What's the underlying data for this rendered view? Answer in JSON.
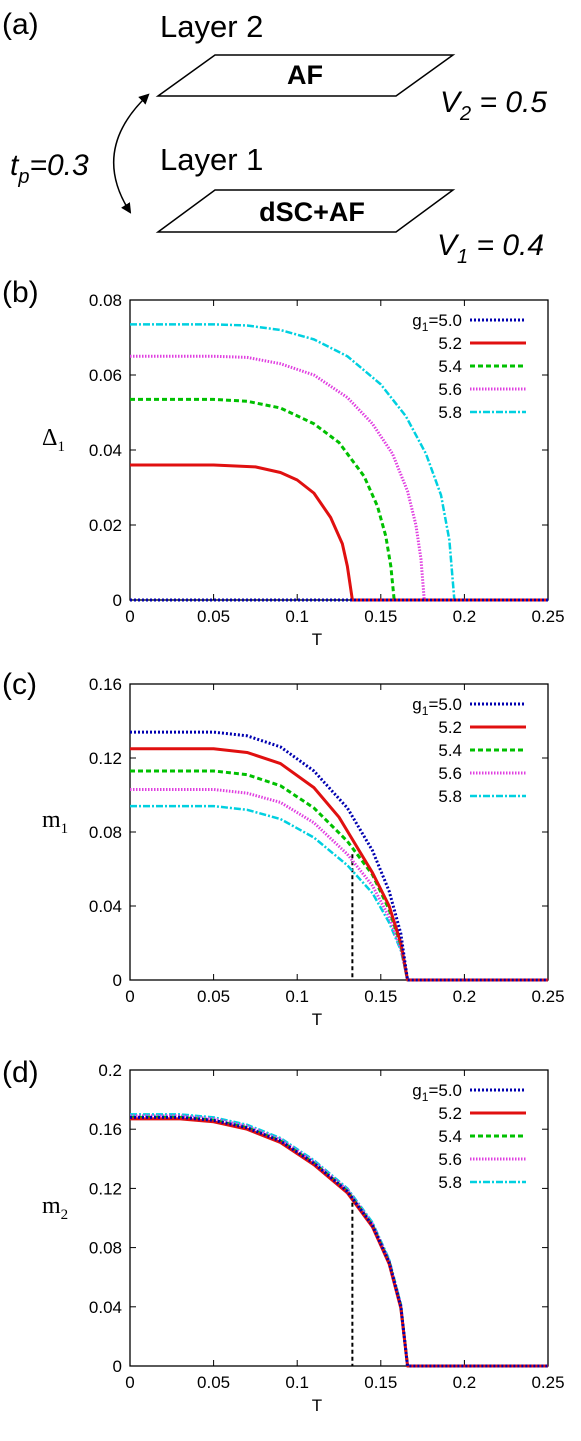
{
  "schematic": {
    "panel_label": "(a)",
    "layer2": {
      "name": "Layer 2",
      "phase": "AF",
      "param_main": "V",
      "param_sub": "2",
      "param_value": " = 0.5"
    },
    "layer1": {
      "name": "Layer 1",
      "phase": "dSC+AF",
      "param_main": "V",
      "param_sub": "1",
      "param_value": " = 0.4"
    },
    "coupling": {
      "main": "t",
      "sub": "p",
      "value": "=0.3"
    }
  },
  "colors": {
    "series": [
      "#0000b0",
      "#e01010",
      "#00c000",
      "#e040e0",
      "#00d0e0"
    ],
    "axis": "#000000"
  },
  "chart_data": [
    {
      "type": "line",
      "panel_label": "(b)",
      "title": "",
      "xlabel": "T",
      "ylabel_main": "Δ",
      "ylabel_sub": "1",
      "xlim": [
        0,
        0.25
      ],
      "ylim": [
        0,
        0.08
      ],
      "xticks": [
        0,
        0.05,
        0.1,
        0.15,
        0.2,
        0.25
      ],
      "xtick_labels": [
        "0",
        "0.05",
        "0.1",
        "0.15",
        "0.2",
        "0.25"
      ],
      "yticks": [
        0,
        0.02,
        0.04,
        0.06,
        0.08
      ],
      "ytick_labels": [
        "0",
        "0.02",
        "0.04",
        "0.06",
        "0.08"
      ],
      "legend_position": "top-right",
      "dashed_marker": null,
      "series": [
        {
          "name": "g₁=5.0",
          "label_main": "g",
          "label_sub": "1",
          "label_rest": "=5.0",
          "style": "dotted",
          "x": [
            0,
            0.25
          ],
          "y": [
            0,
            0
          ]
        },
        {
          "name": "5.2",
          "label_main": "5.2",
          "label_sub": "",
          "label_rest": "",
          "style": "solid",
          "x": [
            0,
            0.05,
            0.075,
            0.09,
            0.1,
            0.11,
            0.12,
            0.127,
            0.13,
            0.133,
            0.25
          ],
          "y": [
            0.036,
            0.036,
            0.0355,
            0.034,
            0.032,
            0.0285,
            0.022,
            0.015,
            0.009,
            0,
            0
          ]
        },
        {
          "name": "5.4",
          "label_main": "5.4",
          "label_sub": "",
          "label_rest": "",
          "style": "dashed",
          "x": [
            0,
            0.05,
            0.07,
            0.09,
            0.11,
            0.125,
            0.14,
            0.148,
            0.153,
            0.156,
            0.158,
            0.25
          ],
          "y": [
            0.0535,
            0.0535,
            0.053,
            0.0512,
            0.047,
            0.042,
            0.033,
            0.025,
            0.017,
            0.009,
            0,
            0
          ]
        },
        {
          "name": "5.6",
          "label_main": "5.6",
          "label_sub": "",
          "label_rest": "",
          "style": "densedot",
          "x": [
            0,
            0.05,
            0.07,
            0.09,
            0.11,
            0.13,
            0.145,
            0.157,
            0.166,
            0.171,
            0.174,
            0.176,
            0.25
          ],
          "y": [
            0.065,
            0.065,
            0.0647,
            0.063,
            0.06,
            0.054,
            0.047,
            0.039,
            0.029,
            0.02,
            0.011,
            0,
            0
          ]
        },
        {
          "name": "5.8",
          "label_main": "5.8",
          "label_sub": "",
          "label_rest": "",
          "style": "dashdot",
          "x": [
            0,
            0.05,
            0.07,
            0.09,
            0.11,
            0.13,
            0.15,
            0.165,
            0.177,
            0.186,
            0.191,
            0.194,
            0.25
          ],
          "y": [
            0.0735,
            0.0735,
            0.0732,
            0.072,
            0.0695,
            0.065,
            0.0575,
            0.049,
            0.039,
            0.028,
            0.016,
            0,
            0
          ]
        }
      ]
    },
    {
      "type": "line",
      "panel_label": "(c)",
      "title": "",
      "xlabel": "T",
      "ylabel_main": "m",
      "ylabel_sub": "1",
      "xlim": [
        0,
        0.25
      ],
      "ylim": [
        0,
        0.16
      ],
      "xticks": [
        0,
        0.05,
        0.1,
        0.15,
        0.2,
        0.25
      ],
      "xtick_labels": [
        "0",
        "0.05",
        "0.1",
        "0.15",
        "0.2",
        "0.25"
      ],
      "yticks": [
        0,
        0.04,
        0.08,
        0.12,
        0.16
      ],
      "ytick_labels": [
        "0",
        "0.04",
        "0.08",
        "0.12",
        "0.16"
      ],
      "legend_position": "top-right",
      "dashed_marker": {
        "x": 0.133,
        "y": 0.068
      },
      "series": [
        {
          "name": "g₁=5.0",
          "label_main": "g",
          "label_sub": "1",
          "label_rest": "=5.0",
          "style": "dotted",
          "x": [
            0,
            0.05,
            0.07,
            0.09,
            0.11,
            0.13,
            0.145,
            0.155,
            0.162,
            0.166,
            0.25
          ],
          "y": [
            0.134,
            0.134,
            0.132,
            0.126,
            0.113,
            0.093,
            0.07,
            0.048,
            0.025,
            0,
            0
          ]
        },
        {
          "name": "5.2",
          "label_main": "5.2",
          "label_sub": "",
          "label_rest": "",
          "style": "solid",
          "x": [
            0,
            0.05,
            0.07,
            0.09,
            0.11,
            0.125,
            0.133,
            0.145,
            0.155,
            0.162,
            0.166,
            0.25
          ],
          "y": [
            0.125,
            0.125,
            0.123,
            0.117,
            0.104,
            0.088,
            0.076,
            0.058,
            0.04,
            0.02,
            0,
            0
          ]
        },
        {
          "name": "5.4",
          "label_main": "5.4",
          "label_sub": "",
          "label_rest": "",
          "style": "dashed",
          "x": [
            0,
            0.05,
            0.07,
            0.09,
            0.11,
            0.13,
            0.145,
            0.155,
            0.162,
            0.166,
            0.25
          ],
          "y": [
            0.113,
            0.113,
            0.111,
            0.105,
            0.093,
            0.075,
            0.057,
            0.038,
            0.019,
            0,
            0
          ]
        },
        {
          "name": "5.6",
          "label_main": "5.6",
          "label_sub": "",
          "label_rest": "",
          "style": "densedot",
          "x": [
            0,
            0.05,
            0.07,
            0.09,
            0.11,
            0.13,
            0.145,
            0.155,
            0.162,
            0.166,
            0.25
          ],
          "y": [
            0.103,
            0.103,
            0.101,
            0.096,
            0.085,
            0.068,
            0.051,
            0.034,
            0.017,
            0,
            0
          ]
        },
        {
          "name": "5.8",
          "label_main": "5.8",
          "label_sub": "",
          "label_rest": "",
          "style": "dashdot",
          "x": [
            0,
            0.05,
            0.07,
            0.09,
            0.11,
            0.13,
            0.145,
            0.155,
            0.162,
            0.166,
            0.25
          ],
          "y": [
            0.094,
            0.094,
            0.092,
            0.087,
            0.077,
            0.062,
            0.047,
            0.031,
            0.016,
            0,
            0
          ]
        }
      ]
    },
    {
      "type": "line",
      "panel_label": "(d)",
      "title": "",
      "xlabel": "T",
      "ylabel_main": "m",
      "ylabel_sub": "2",
      "xlim": [
        0,
        0.25
      ],
      "ylim": [
        0,
        0.2
      ],
      "xticks": [
        0,
        0.05,
        0.1,
        0.15,
        0.2,
        0.25
      ],
      "xtick_labels": [
        "0",
        "0.05",
        "0.1",
        "0.15",
        "0.2",
        "0.25"
      ],
      "yticks": [
        0,
        0.04,
        0.08,
        0.12,
        0.16,
        0.2
      ],
      "ytick_labels": [
        "0",
        "0.04",
        "0.08",
        "0.12",
        "0.16",
        "0.2"
      ],
      "legend_position": "top-right",
      "dashed_marker": {
        "x": 0.133,
        "y": 0.115
      },
      "series": [
        {
          "name": "g₁=5.0",
          "label_main": "g",
          "label_sub": "1",
          "label_rest": "=5.0",
          "style": "dotted",
          "x": [
            0,
            0.03,
            0.05,
            0.07,
            0.09,
            0.11,
            0.13,
            0.145,
            0.155,
            0.162,
            0.166,
            0.25
          ],
          "y": [
            0.168,
            0.168,
            0.166,
            0.161,
            0.152,
            0.137,
            0.118,
            0.095,
            0.07,
            0.04,
            0,
            0
          ]
        },
        {
          "name": "5.2",
          "label_main": "5.2",
          "label_sub": "",
          "label_rest": "",
          "style": "solid",
          "x": [
            0,
            0.03,
            0.05,
            0.07,
            0.09,
            0.11,
            0.13,
            0.145,
            0.155,
            0.162,
            0.166,
            0.25
          ],
          "y": [
            0.167,
            0.167,
            0.165,
            0.16,
            0.151,
            0.136,
            0.117,
            0.094,
            0.069,
            0.039,
            0,
            0
          ]
        },
        {
          "name": "5.4",
          "label_main": "5.4",
          "label_sub": "",
          "label_rest": "",
          "style": "dashed",
          "x": [
            0,
            0.03,
            0.05,
            0.07,
            0.09,
            0.11,
            0.13,
            0.145,
            0.155,
            0.162,
            0.166,
            0.25
          ],
          "y": [
            0.168,
            0.168,
            0.166,
            0.161,
            0.152,
            0.137,
            0.118,
            0.095,
            0.07,
            0.04,
            0,
            0
          ]
        },
        {
          "name": "5.6",
          "label_main": "5.6",
          "label_sub": "",
          "label_rest": "",
          "style": "densedot",
          "x": [
            0,
            0.03,
            0.05,
            0.07,
            0.09,
            0.11,
            0.13,
            0.145,
            0.155,
            0.162,
            0.166,
            0.25
          ],
          "y": [
            0.169,
            0.169,
            0.167,
            0.162,
            0.153,
            0.138,
            0.119,
            0.096,
            0.071,
            0.041,
            0,
            0
          ]
        },
        {
          "name": "5.8",
          "label_main": "5.8",
          "label_sub": "",
          "label_rest": "",
          "style": "dashdot",
          "x": [
            0,
            0.03,
            0.05,
            0.07,
            0.09,
            0.11,
            0.13,
            0.145,
            0.155,
            0.162,
            0.166,
            0.25
          ],
          "y": [
            0.17,
            0.17,
            0.168,
            0.163,
            0.154,
            0.139,
            0.12,
            0.097,
            0.072,
            0.042,
            0,
            0
          ]
        }
      ]
    }
  ]
}
